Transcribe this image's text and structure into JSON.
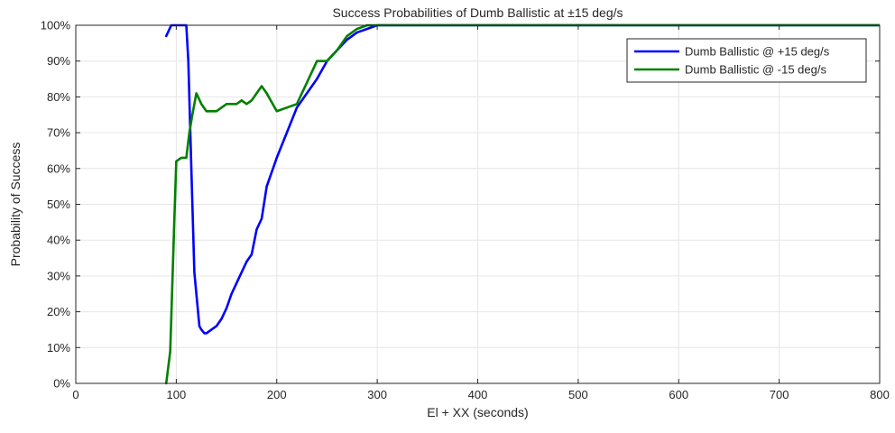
{
  "chart_data": {
    "type": "line",
    "title": "Success Probabilities of Dumb Ballistic at ±15 deg/s",
    "xlabel": "El + XX (seconds)",
    "ylabel": "Probability of Success",
    "xlim": [
      0,
      800
    ],
    "ylim": [
      0,
      100
    ],
    "xticks": [
      0,
      100,
      200,
      300,
      400,
      500,
      600,
      700,
      800
    ],
    "yticks": [
      0,
      10,
      20,
      30,
      40,
      50,
      60,
      70,
      80,
      90,
      100
    ],
    "xtick_labels": [
      "0",
      "100",
      "200",
      "300",
      "400",
      "500",
      "600",
      "700",
      "800"
    ],
    "ytick_labels": [
      "0%",
      "10%",
      "20%",
      "30%",
      "40%",
      "50%",
      "60%",
      "70%",
      "80%",
      "90%",
      "100%"
    ],
    "grid": true,
    "legend_position": "top-right",
    "series": [
      {
        "name": "Dumb Ballistic @ +15 deg/s",
        "color": "#0000ff",
        "x": [
          90,
          95,
          98,
          100,
          102,
          105,
          108,
          110,
          112,
          115,
          118,
          120,
          123,
          125,
          128,
          130,
          135,
          140,
          145,
          150,
          155,
          160,
          165,
          170,
          175,
          180,
          185,
          190,
          200,
          210,
          220,
          230,
          240,
          250,
          260,
          270,
          280,
          290,
          300,
          800
        ],
        "y": [
          97,
          100,
          100,
          100,
          100,
          100,
          100,
          100,
          90,
          60,
          31,
          25,
          16,
          15,
          14,
          14,
          15,
          16,
          18,
          21,
          25,
          28,
          31,
          34,
          36,
          43,
          46,
          55,
          63,
          70,
          77,
          81,
          85,
          90,
          93,
          96,
          98,
          99,
          100,
          100
        ]
      },
      {
        "name": "Dumb Ballistic @ -15 deg/s",
        "color": "#008000",
        "x": [
          90,
          94,
          98,
          100,
          105,
          110,
          113,
          116,
          120,
          125,
          130,
          140,
          150,
          155,
          160,
          165,
          170,
          175,
          180,
          185,
          190,
          200,
          210,
          220,
          230,
          240,
          245,
          250,
          260,
          270,
          280,
          290,
          300,
          800
        ],
        "y": [
          0,
          9,
          45,
          62,
          63,
          63,
          70,
          75,
          81,
          78,
          76,
          76,
          78,
          78,
          78,
          79,
          78,
          79,
          81,
          83,
          81,
          76,
          77,
          78,
          84,
          90,
          90,
          90,
          93,
          97,
          99,
          100,
          100,
          100
        ]
      }
    ]
  }
}
